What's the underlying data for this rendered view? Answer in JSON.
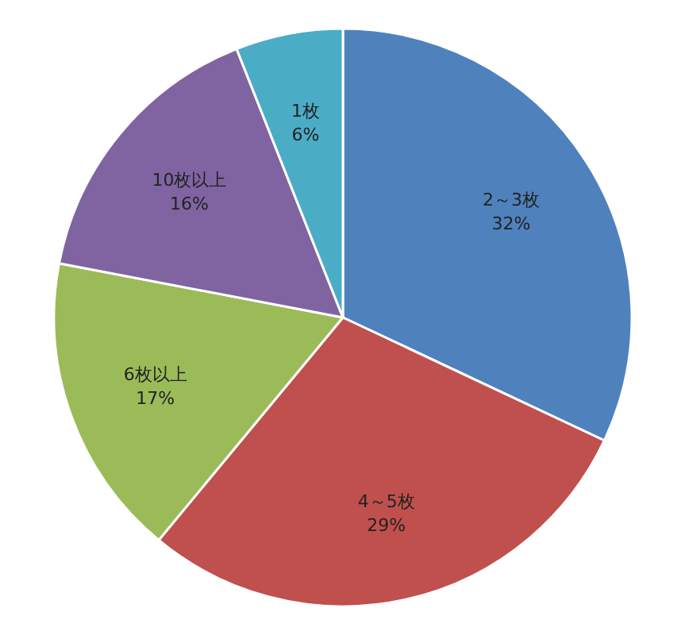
{
  "chart_data": {
    "type": "pie",
    "categories": [
      "2～3枚",
      "4～5枚",
      "6枚以上",
      "10枚以上",
      "1枚"
    ],
    "values": [
      32,
      29,
      17,
      16,
      6
    ],
    "colors": [
      "#4f81bd",
      "#c0504d",
      "#9bbb59",
      "#8064a2",
      "#4bacc6"
    ],
    "value_labels": [
      "32%",
      "29%",
      "17%",
      "16%",
      "6%"
    ],
    "legend": false
  }
}
